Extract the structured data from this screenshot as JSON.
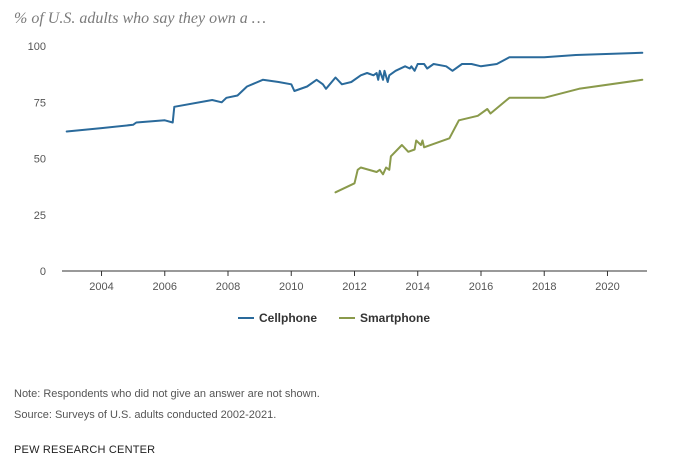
{
  "title": "% of U.S. adults who say they own a …",
  "note": "Note: Respondents who did not give an answer are not shown.",
  "source": "Source: Surveys of U.S. adults conducted 2002-2021.",
  "footer": "PEW RESEARCH CENTER",
  "chart_data": {
    "type": "line",
    "xlim": [
      2002.75,
      2021.25
    ],
    "ylim": [
      0,
      100
    ],
    "x_ticks": [
      2004,
      2006,
      2008,
      2010,
      2012,
      2014,
      2016,
      2018,
      2020
    ],
    "y_ticks": [
      0,
      25,
      50,
      75,
      100
    ],
    "grid": false,
    "legend_position": "bottom-center",
    "series": [
      {
        "name": "Cellphone",
        "color": "#2a6a9b",
        "points": [
          [
            2002.9,
            62
          ],
          [
            2004.0,
            63.5
          ],
          [
            2005.0,
            65
          ],
          [
            2005.1,
            66
          ],
          [
            2006.0,
            67
          ],
          [
            2006.25,
            66
          ],
          [
            2006.3,
            73
          ],
          [
            2007.5,
            76
          ],
          [
            2007.8,
            75
          ],
          [
            2007.95,
            77
          ],
          [
            2008.3,
            78
          ],
          [
            2008.6,
            82
          ],
          [
            2009.1,
            85
          ],
          [
            2009.6,
            84
          ],
          [
            2010.0,
            83
          ],
          [
            2010.1,
            80
          ],
          [
            2010.5,
            82
          ],
          [
            2010.8,
            85
          ],
          [
            2011.0,
            83
          ],
          [
            2011.1,
            81
          ],
          [
            2011.4,
            86
          ],
          [
            2011.6,
            83
          ],
          [
            2011.9,
            84
          ],
          [
            2012.2,
            87
          ],
          [
            2012.4,
            88
          ],
          [
            2012.6,
            87
          ],
          [
            2012.7,
            88
          ],
          [
            2012.75,
            85
          ],
          [
            2012.8,
            89
          ],
          [
            2012.9,
            85
          ],
          [
            2012.95,
            89
          ],
          [
            2013.05,
            84
          ],
          [
            2013.1,
            87
          ],
          [
            2013.3,
            89
          ],
          [
            2013.6,
            91
          ],
          [
            2013.75,
            90
          ],
          [
            2013.8,
            91
          ],
          [
            2013.9,
            89
          ],
          [
            2014.0,
            92
          ],
          [
            2014.2,
            92
          ],
          [
            2014.3,
            90
          ],
          [
            2014.5,
            92
          ],
          [
            2014.9,
            91
          ],
          [
            2015.1,
            89
          ],
          [
            2015.4,
            92
          ],
          [
            2015.7,
            92
          ],
          [
            2016.0,
            91
          ],
          [
            2016.5,
            92
          ],
          [
            2016.9,
            95
          ],
          [
            2017.5,
            95
          ],
          [
            2018.0,
            95
          ],
          [
            2019.0,
            96
          ],
          [
            2021.1,
            97
          ]
        ]
      },
      {
        "name": "Smartphone",
        "color": "#8a9a4b",
        "points": [
          [
            2011.4,
            35
          ],
          [
            2012.0,
            39
          ],
          [
            2012.1,
            45
          ],
          [
            2012.2,
            46
          ],
          [
            2012.7,
            44
          ],
          [
            2012.8,
            45
          ],
          [
            2012.9,
            43
          ],
          [
            2013.0,
            46
          ],
          [
            2013.1,
            45
          ],
          [
            2013.15,
            51
          ],
          [
            2013.5,
            56
          ],
          [
            2013.7,
            53
          ],
          [
            2013.9,
            54
          ],
          [
            2013.95,
            58
          ],
          [
            2014.1,
            56
          ],
          [
            2014.15,
            58
          ],
          [
            2014.2,
            55
          ],
          [
            2015.0,
            59
          ],
          [
            2015.3,
            67
          ],
          [
            2015.9,
            69
          ],
          [
            2016.2,
            72
          ],
          [
            2016.3,
            70
          ],
          [
            2016.9,
            77
          ],
          [
            2018.0,
            77
          ],
          [
            2019.1,
            81
          ],
          [
            2021.1,
            85
          ]
        ]
      }
    ]
  }
}
